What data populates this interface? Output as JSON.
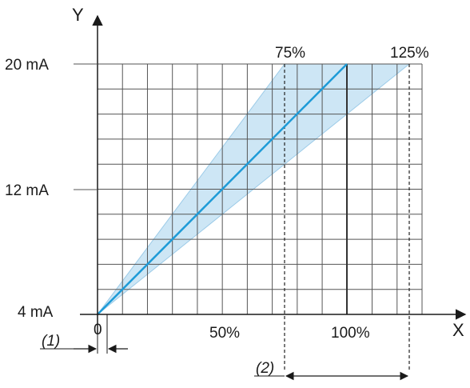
{
  "diagram": {
    "y_axis_name": "Y",
    "x_axis_name": "X",
    "y_labels": {
      "low": "4 mA",
      "mid": "12 mA",
      "high": "20 mA"
    },
    "x_labels": {
      "zero": "0",
      "half": "50%",
      "full": "100%"
    },
    "range_labels": {
      "min": "75%",
      "max": "125%"
    },
    "annotations": {
      "one": "(1)",
      "two": "(2)"
    },
    "colors": {
      "band_fill": "#cde6f5",
      "band_edge": "#9ccbe8",
      "line": "#1e9bd7",
      "grid": "#555555"
    }
  },
  "chart_data": {
    "type": "line",
    "xlabel": "X",
    "ylabel": "Y",
    "y_ticks": [
      "4 mA",
      "12 mA",
      "20 mA"
    ],
    "x_ticks": [
      "0",
      "50%",
      "100%"
    ],
    "series": [
      {
        "x": [
          0,
          100
        ],
        "y": [
          4,
          20
        ]
      }
    ],
    "band": {
      "x_at_20mA": [
        75,
        125
      ]
    },
    "grid": true
  }
}
